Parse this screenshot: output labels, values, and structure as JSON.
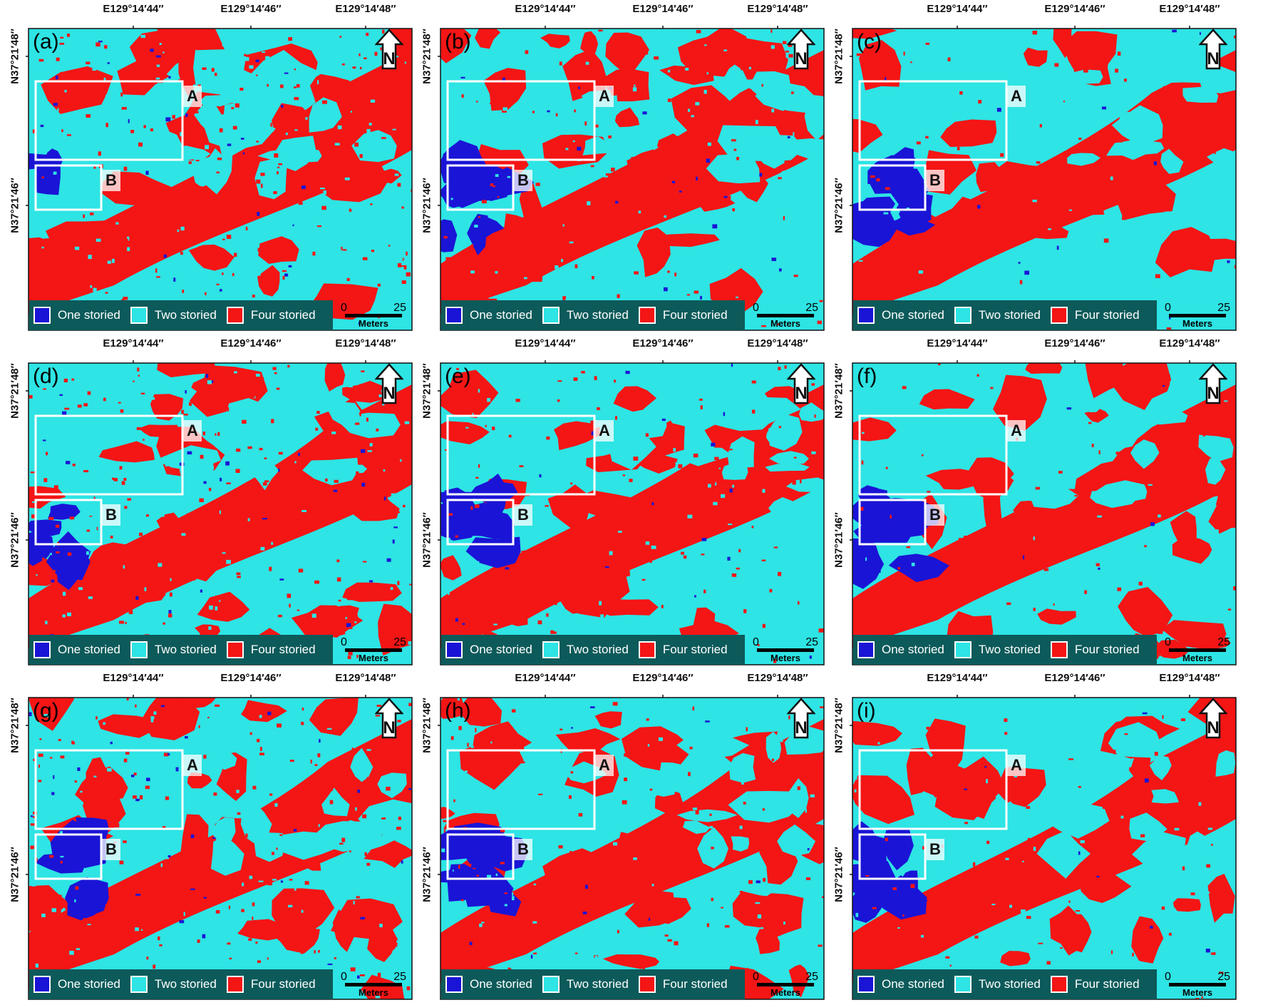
{
  "figure": {
    "longitude_ticks": [
      "E129°14′44″",
      "E129°14′46″",
      "E129°14′48″"
    ],
    "latitude_ticks": [
      "N37°21′48″",
      "N37°21′46″"
    ],
    "inspection_boxes": [
      "A",
      "B"
    ],
    "legend": [
      {
        "label": "One storied",
        "color": "#1a14d6"
      },
      {
        "label": "Two storied",
        "color": "#2ee4e4"
      },
      {
        "label": "Four storied",
        "color": "#f41515"
      }
    ],
    "scale_bar": {
      "start": "0",
      "end": "25",
      "unit": "Meters"
    },
    "north_arrow_label": "N",
    "panels": [
      {
        "letter": "(a)"
      },
      {
        "letter": "(b)"
      },
      {
        "letter": "(c)"
      },
      {
        "letter": "(d)"
      },
      {
        "letter": "(e)"
      },
      {
        "letter": "(f)"
      },
      {
        "letter": "(g)"
      },
      {
        "letter": "(h)"
      },
      {
        "letter": "(i)"
      }
    ]
  }
}
